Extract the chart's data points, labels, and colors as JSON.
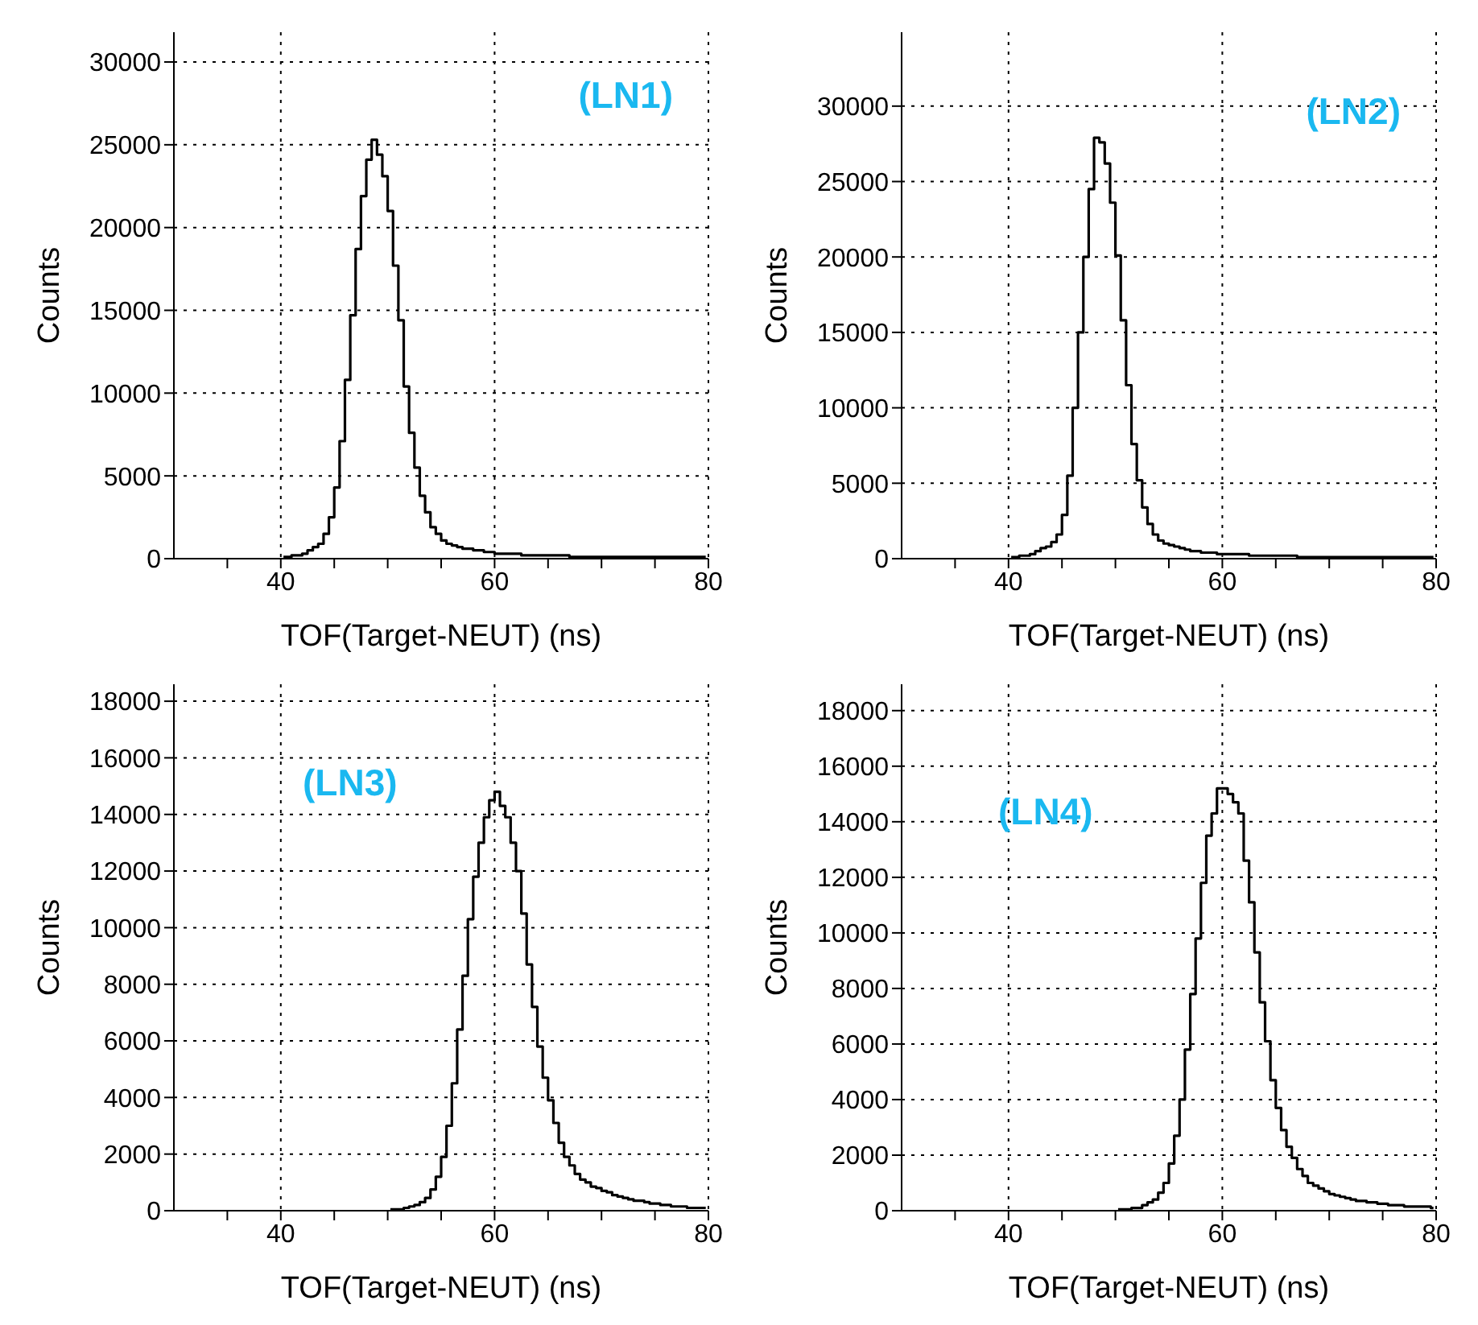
{
  "chart_data": [
    {
      "type": "step",
      "xlabel": "TOF(Target-NEUT) (ns)",
      "ylabel": "Counts",
      "annotations": [
        "(LN1)"
      ],
      "color": "#000000",
      "grid": true,
      "xlim": [
        30,
        80
      ],
      "xticks": [
        {
          "value": 35,
          "label": null
        },
        40,
        {
          "value": 45,
          "label": null
        },
        {
          "value": 50,
          "label": null
        },
        {
          "value": 55,
          "label": null
        },
        60,
        {
          "value": 65,
          "label": null
        },
        {
          "value": 70,
          "label": null
        },
        {
          "value": 75,
          "label": null
        },
        80
      ],
      "ylim": [
        0,
        31800
      ],
      "yticks": [
        0,
        5000,
        10000,
        15000,
        20000,
        25000,
        30000
      ],
      "x": [
        40.25,
        40.75,
        41.25,
        41.75,
        42.25,
        42.75,
        43.25,
        43.75,
        44.25,
        44.75,
        45.25,
        45.75,
        46.25,
        46.75,
        47.25,
        47.75,
        48.25,
        48.75,
        49.25,
        49.75,
        50.25,
        50.75,
        51.25,
        51.75,
        52.25,
        52.75,
        53.25,
        53.75,
        54.25,
        54.75,
        55.25,
        55.75,
        56.25,
        56.75,
        57.25,
        57.75,
        58.25,
        58.75,
        59.25,
        59.75,
        60.25,
        60.75,
        61.25,
        61.75,
        62.25,
        62.75,
        63.25,
        63.75,
        64.25,
        64.75,
        65.25,
        65.75,
        66.25,
        66.75,
        67.25,
        67.75,
        68.25,
        68.75,
        69.25,
        69.75,
        70.25,
        70.75,
        71.25,
        71.75,
        72.25,
        72.75,
        73.25,
        73.75,
        74.25,
        74.75,
        75.25,
        75.75,
        76.25,
        76.75,
        77.25,
        77.75,
        78.25,
        78.75,
        79.25,
        79.75
      ],
      "values": [
        100,
        100,
        200,
        200,
        300,
        500,
        700,
        900,
        1500,
        2500,
        4300,
        7100,
        10800,
        14700,
        18700,
        21900,
        24100,
        25300,
        24400,
        23100,
        21000,
        17700,
        14400,
        10400,
        7600,
        5500,
        3800,
        2800,
        1900,
        1500,
        1100,
        900,
        800,
        700,
        600,
        600,
        500,
        500,
        400,
        400,
        300,
        300,
        300,
        300,
        300,
        200,
        200,
        200,
        200,
        200,
        200,
        200,
        200,
        200,
        100,
        100,
        100,
        100,
        100,
        100,
        100,
        100,
        100,
        100,
        100,
        100,
        100,
        100,
        100,
        100,
        100,
        100,
        100,
        100,
        100,
        100,
        100,
        100,
        100,
        100
      ]
    },
    {
      "type": "step",
      "xlabel": "TOF(Target-NEUT) (ns)",
      "ylabel": "Counts",
      "annotations": [
        "(LN2)"
      ],
      "color": "#000000",
      "grid": true,
      "xlim": [
        30,
        80
      ],
      "xticks": [
        {
          "value": 35,
          "label": null
        },
        40,
        {
          "value": 45,
          "label": null
        },
        {
          "value": 50,
          "label": null
        },
        {
          "value": 55,
          "label": null
        },
        60,
        {
          "value": 65,
          "label": null
        },
        {
          "value": 70,
          "label": null
        },
        {
          "value": 75,
          "label": null
        },
        80
      ],
      "ylim": [
        0,
        34900
      ],
      "yticks": [
        0,
        5000,
        10000,
        15000,
        20000,
        25000,
        30000
      ],
      "x": [
        40.25,
        40.75,
        41.25,
        41.75,
        42.25,
        42.75,
        43.25,
        43.75,
        44.25,
        44.75,
        45.25,
        45.75,
        46.25,
        46.75,
        47.25,
        47.75,
        48.25,
        48.75,
        49.25,
        49.75,
        50.25,
        50.75,
        51.25,
        51.75,
        52.25,
        52.75,
        53.25,
        53.75,
        54.25,
        54.75,
        55.25,
        55.75,
        56.25,
        56.75,
        57.25,
        57.75,
        58.25,
        58.75,
        59.25,
        59.75,
        60.25,
        60.75,
        61.25,
        61.75,
        62.25,
        62.75,
        63.25,
        63.75,
        64.25,
        64.75,
        65.25,
        65.75,
        66.25,
        66.75,
        67.25,
        67.75,
        68.25,
        68.75,
        69.25,
        69.75,
        70.25,
        70.75,
        71.25,
        71.75,
        72.25,
        72.75,
        73.25,
        73.75,
        74.25,
        74.75,
        75.25,
        75.75,
        76.25,
        76.75,
        77.25,
        77.75,
        78.25,
        78.75,
        79.25,
        79.75
      ],
      "values": [
        100,
        100,
        200,
        200,
        300,
        500,
        700,
        800,
        1100,
        1600,
        2900,
        5500,
        10000,
        15000,
        20000,
        24500,
        27900,
        27600,
        26200,
        23600,
        20100,
        15800,
        11500,
        7600,
        5200,
        3400,
        2300,
        1600,
        1200,
        1000,
        900,
        800,
        700,
        600,
        500,
        500,
        400,
        400,
        400,
        300,
        300,
        300,
        300,
        300,
        300,
        200,
        200,
        200,
        200,
        200,
        200,
        200,
        200,
        200,
        100,
        100,
        100,
        100,
        100,
        100,
        100,
        100,
        100,
        100,
        100,
        100,
        100,
        100,
        100,
        100,
        100,
        100,
        100,
        100,
        100,
        100,
        100,
        100,
        100,
        100
      ]
    },
    {
      "type": "step",
      "xlabel": "TOF(Target-NEUT) (ns)",
      "ylabel": "Counts",
      "annotations": [
        "(LN3)"
      ],
      "color": "#000000",
      "grid": true,
      "xlim": [
        30,
        80
      ],
      "xticks": [
        {
          "value": 35,
          "label": null
        },
        40,
        {
          "value": 45,
          "label": null
        },
        {
          "value": 50,
          "label": null
        },
        {
          "value": 55,
          "label": null
        },
        60,
        {
          "value": 65,
          "label": null
        },
        {
          "value": 70,
          "label": null
        },
        {
          "value": 75,
          "label": null
        },
        80
      ],
      "ylim": [
        0,
        18600
      ],
      "yticks": [
        0,
        2000,
        4000,
        6000,
        8000,
        10000,
        12000,
        14000,
        16000,
        18000
      ],
      "x": [
        50.25,
        50.75,
        51.25,
        51.75,
        52.25,
        52.75,
        53.25,
        53.75,
        54.25,
        54.75,
        55.25,
        55.75,
        56.25,
        56.75,
        57.25,
        57.75,
        58.25,
        58.75,
        59.25,
        59.75,
        60.25,
        60.75,
        61.25,
        61.75,
        62.25,
        62.75,
        63.25,
        63.75,
        64.25,
        64.75,
        65.25,
        65.75,
        66.25,
        66.75,
        67.25,
        67.75,
        68.25,
        68.75,
        69.25,
        69.75,
        70.25,
        70.75,
        71.25,
        71.75,
        72.25,
        72.75,
        73.25,
        73.75,
        74.25,
        74.75,
        75.25,
        75.75,
        76.25,
        76.75,
        77.25,
        77.75,
        78.25,
        78.75,
        79.25,
        79.75
      ],
      "values": [
        50,
        50,
        50,
        100,
        150,
        200,
        300,
        450,
        750,
        1200,
        1900,
        3000,
        4500,
        6400,
        8300,
        10300,
        11800,
        13000,
        13900,
        14500,
        14800,
        14300,
        13900,
        13000,
        12000,
        10500,
        8700,
        7200,
        5800,
        4700,
        3900,
        3100,
        2400,
        1900,
        1600,
        1300,
        1100,
        1000,
        850,
        800,
        700,
        650,
        550,
        500,
        450,
        400,
        350,
        350,
        300,
        250,
        250,
        200,
        200,
        150,
        150,
        150,
        100,
        100,
        100,
        100
      ]
    },
    {
      "type": "step",
      "xlabel": "TOF(Target-NEUT) (ns)",
      "ylabel": "Counts",
      "annotations": [
        "(LN4)"
      ],
      "color": "#000000",
      "grid": true,
      "xlim": [
        30,
        80
      ],
      "xticks": [
        {
          "value": 35,
          "label": null
        },
        40,
        {
          "value": 45,
          "label": null
        },
        {
          "value": 50,
          "label": null
        },
        {
          "value": 55,
          "label": null
        },
        60,
        {
          "value": 65,
          "label": null
        },
        {
          "value": 70,
          "label": null
        },
        {
          "value": 75,
          "label": null
        },
        80
      ],
      "ylim": [
        0,
        18950
      ],
      "yticks": [
        0,
        2000,
        4000,
        6000,
        8000,
        10000,
        12000,
        14000,
        16000,
        18000
      ],
      "x": [
        50.25,
        50.75,
        51.25,
        51.75,
        52.25,
        52.75,
        53.25,
        53.75,
        54.25,
        54.75,
        55.25,
        55.75,
        56.25,
        56.75,
        57.25,
        57.75,
        58.25,
        58.75,
        59.25,
        59.75,
        60.25,
        60.75,
        61.25,
        61.75,
        62.25,
        62.75,
        63.25,
        63.75,
        64.25,
        64.75,
        65.25,
        65.75,
        66.25,
        66.75,
        67.25,
        67.75,
        68.25,
        68.75,
        69.25,
        69.75,
        70.25,
        70.75,
        71.25,
        71.75,
        72.25,
        72.75,
        73.25,
        73.75,
        74.25,
        74.75,
        75.25,
        75.75,
        76.25,
        76.75,
        77.25,
        77.75,
        78.25,
        78.75,
        79.25,
        79.75
      ],
      "values": [
        50,
        50,
        50,
        100,
        100,
        200,
        300,
        400,
        650,
        1000,
        1700,
        2700,
        4000,
        5800,
        7800,
        9800,
        11800,
        13500,
        14300,
        15200,
        15200,
        15000,
        14700,
        14300,
        12600,
        11100,
        9300,
        7500,
        6100,
        4700,
        3700,
        2900,
        2300,
        1900,
        1500,
        1250,
        1000,
        900,
        800,
        700,
        600,
        550,
        500,
        450,
        400,
        350,
        350,
        300,
        300,
        250,
        250,
        200,
        200,
        200,
        150,
        150,
        150,
        150,
        150,
        100
      ]
    }
  ]
}
